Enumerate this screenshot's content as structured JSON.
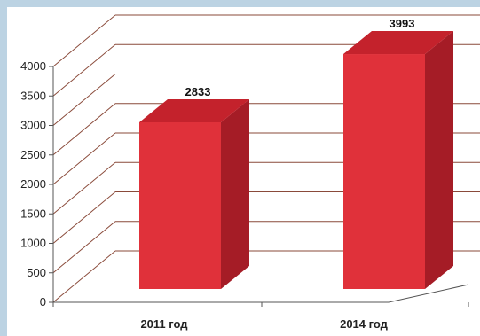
{
  "chart_data": {
    "type": "bar",
    "categories": [
      "2011 год",
      "2014 год"
    ],
    "values": [
      2833,
      3993
    ],
    "ylim": [
      0,
      4000
    ],
    "yticks": [
      0,
      500,
      1000,
      1500,
      2000,
      2500,
      3000,
      3500,
      4000
    ],
    "title": "",
    "xlabel": "",
    "ylabel": "",
    "grid": true,
    "legend": "none",
    "three_d": true,
    "data_labels": true,
    "colors": {
      "bar_front": "#e0313a",
      "bar_side": "#a51c26",
      "bar_top": "#c4222c",
      "grid": "#8a4a3a",
      "axis": "#555555",
      "page_background": "#bcd3e3"
    }
  }
}
